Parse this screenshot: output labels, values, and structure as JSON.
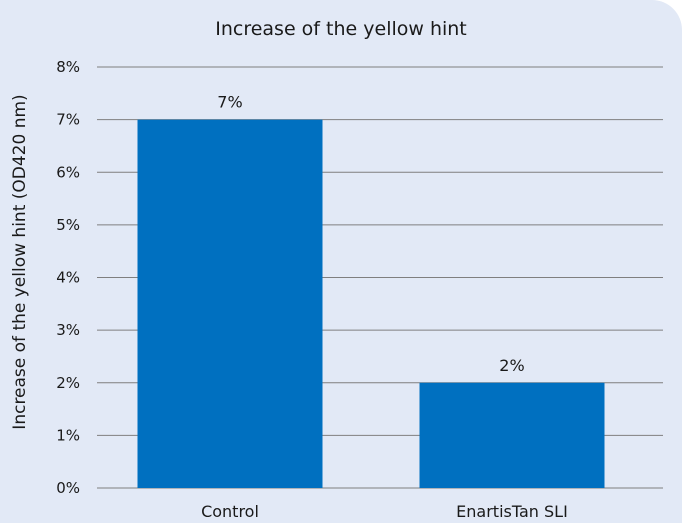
{
  "colors": {
    "background": "#e2e9f6",
    "bar": "#0070c0",
    "gridline": "#7f7f7f"
  },
  "chart_data": {
    "type": "bar",
    "title": "Increase of the yellow hint",
    "xlabel": "",
    "ylabel": "Increase of the yellow hint (OD420 nm)",
    "categories": [
      "Control",
      "EnartisTan SLI"
    ],
    "values": [
      7,
      2
    ],
    "data_labels": [
      "7%",
      "2%"
    ],
    "ylim": [
      0,
      8
    ],
    "yticks": [
      0,
      1,
      2,
      3,
      4,
      5,
      6,
      7,
      8
    ],
    "ytick_labels": [
      "0%",
      "1%",
      "2%",
      "3%",
      "4%",
      "5%",
      "6%",
      "7%",
      "8%"
    ],
    "grid": true,
    "legend": "none"
  }
}
